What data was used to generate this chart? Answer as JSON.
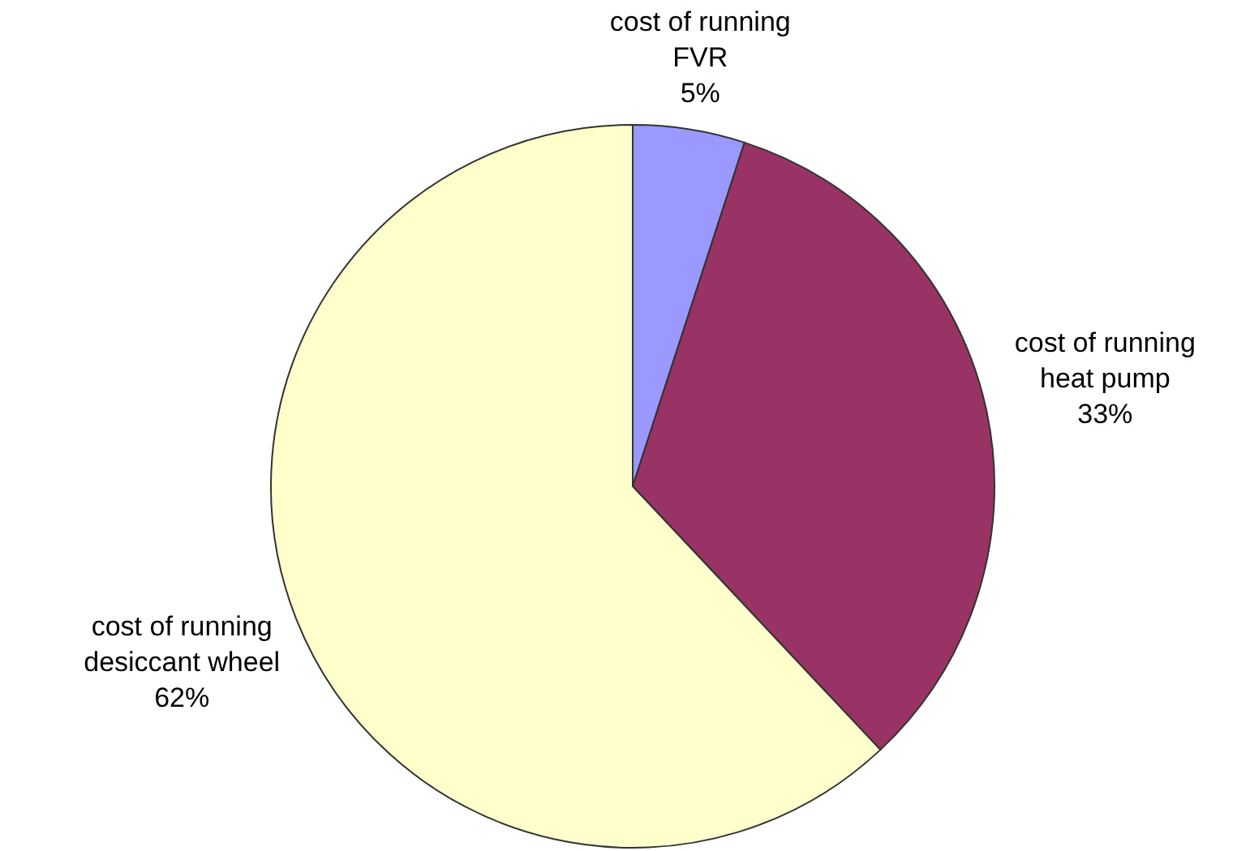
{
  "chart_data": {
    "type": "pie",
    "categories": [
      "cost of running\nFVR",
      "cost of running\nheat pump",
      "cost of running\ndesiccant wheel"
    ],
    "values": [
      5,
      33,
      62
    ],
    "value_labels": [
      "5%",
      "33%",
      "62%"
    ],
    "colors": [
      "#9999ff",
      "#993366",
      "#ffffcc"
    ],
    "legend": false
  }
}
